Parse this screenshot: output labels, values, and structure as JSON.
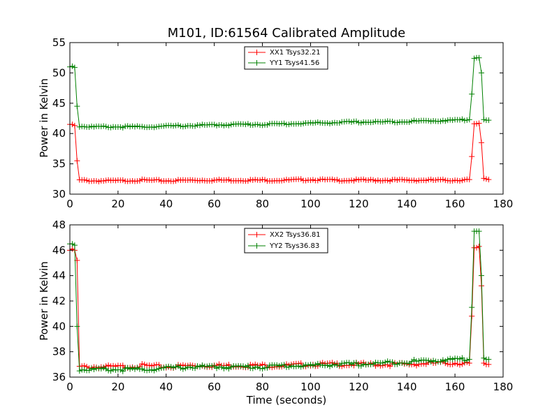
{
  "chart_data": [
    {
      "type": "line",
      "title": "M101, ID:61564 Calibrated Amplitude",
      "xlabel": "",
      "ylabel": "Power in Kelvin",
      "xlim": [
        0,
        180
      ],
      "ylim": [
        30,
        55
      ],
      "xticks": [
        "0",
        "20",
        "40",
        "60",
        "80",
        "100",
        "120",
        "140",
        "160",
        "180"
      ],
      "yticks": [
        "30",
        "35",
        "40",
        "45",
        "50",
        "55"
      ],
      "legend_position": "upper center",
      "series": [
        {
          "name": "XX1 Tsys32.21",
          "color": "#ff0000",
          "points": [
            [
              0,
              41.5
            ],
            [
              1,
              41.5
            ],
            [
              2,
              41.3
            ],
            [
              3,
              35.5
            ],
            [
              4,
              32.3
            ],
            [
              10,
              32.2
            ],
            [
              20,
              32.2
            ],
            [
              30,
              32.3
            ],
            [
              40,
              32.2
            ],
            [
              50,
              32.3
            ],
            [
              60,
              32.3
            ],
            [
              70,
              32.3
            ],
            [
              80,
              32.3
            ],
            [
              90,
              32.3
            ],
            [
              100,
              32.4
            ],
            [
              110,
              32.3
            ],
            [
              120,
              32.3
            ],
            [
              130,
              32.3
            ],
            [
              140,
              32.3
            ],
            [
              150,
              32.3
            ],
            [
              160,
              32.3
            ],
            [
              166,
              32.4
            ],
            [
              167,
              36.2
            ],
            [
              168,
              41.6
            ],
            [
              169,
              41.6
            ],
            [
              170,
              41.7
            ],
            [
              171,
              38.5
            ],
            [
              172,
              32.6
            ],
            [
              173,
              32.5
            ],
            [
              174,
              32.4
            ]
          ]
        },
        {
          "name": "YY1 Tsys41.56",
          "color": "#008000",
          "points": [
            [
              0,
              51.0
            ],
            [
              1,
              51.1
            ],
            [
              2,
              50.9
            ],
            [
              3,
              44.5
            ],
            [
              4,
              41.2
            ],
            [
              10,
              41.1
            ],
            [
              20,
              41.1
            ],
            [
              30,
              41.1
            ],
            [
              40,
              41.2
            ],
            [
              50,
              41.3
            ],
            [
              60,
              41.4
            ],
            [
              70,
              41.5
            ],
            [
              80,
              41.5
            ],
            [
              90,
              41.6
            ],
            [
              100,
              41.7
            ],
            [
              110,
              41.8
            ],
            [
              120,
              41.9
            ],
            [
              130,
              41.9
            ],
            [
              140,
              42.0
            ],
            [
              150,
              42.1
            ],
            [
              160,
              42.2
            ],
            [
              166,
              42.3
            ],
            [
              167,
              46.5
            ],
            [
              168,
              52.4
            ],
            [
              169,
              52.5
            ],
            [
              170,
              52.5
            ],
            [
              171,
              50.0
            ],
            [
              172,
              42.3
            ],
            [
              173,
              42.2
            ],
            [
              174,
              42.2
            ]
          ]
        }
      ]
    },
    {
      "type": "line",
      "title": "",
      "xlabel": "Time (seconds)",
      "ylabel": "Power in Kelvin",
      "xlim": [
        0,
        180
      ],
      "ylim": [
        36,
        48
      ],
      "xticks": [
        "0",
        "20",
        "40",
        "60",
        "80",
        "100",
        "120",
        "140",
        "160",
        "180"
      ],
      "yticks": [
        "36",
        "38",
        "40",
        "42",
        "44",
        "46",
        "48"
      ],
      "legend_position": "upper center",
      "series": [
        {
          "name": "XX2 Tsys36.81",
          "color": "#ff0000",
          "points": [
            [
              0,
              46.0
            ],
            [
              1,
              46.1
            ],
            [
              2,
              46.0
            ],
            [
              3,
              45.2
            ],
            [
              4,
              36.8
            ],
            [
              10,
              36.8
            ],
            [
              20,
              36.8
            ],
            [
              30,
              36.9
            ],
            [
              40,
              36.8
            ],
            [
              50,
              36.9
            ],
            [
              60,
              36.9
            ],
            [
              70,
              36.9
            ],
            [
              80,
              36.9
            ],
            [
              90,
              36.9
            ],
            [
              100,
              37.0
            ],
            [
              110,
              37.0
            ],
            [
              120,
              37.0
            ],
            [
              130,
              37.0
            ],
            [
              140,
              37.0
            ],
            [
              150,
              37.1
            ],
            [
              160,
              37.1
            ],
            [
              166,
              37.1
            ],
            [
              167,
              40.8
            ],
            [
              168,
              46.2
            ],
            [
              169,
              46.2
            ],
            [
              170,
              46.3
            ],
            [
              171,
              43.2
            ],
            [
              172,
              37.1
            ],
            [
              173,
              37.0
            ],
            [
              174,
              37.0
            ]
          ]
        },
        {
          "name": "YY2 Tsys36.83",
          "color": "#008000",
          "points": [
            [
              0,
              46.5
            ],
            [
              1,
              46.5
            ],
            [
              2,
              46.4
            ],
            [
              3,
              40.0
            ],
            [
              4,
              36.6
            ],
            [
              10,
              36.6
            ],
            [
              20,
              36.6
            ],
            [
              30,
              36.6
            ],
            [
              40,
              36.7
            ],
            [
              50,
              36.8
            ],
            [
              60,
              36.8
            ],
            [
              70,
              36.8
            ],
            [
              80,
              36.8
            ],
            [
              90,
              36.9
            ],
            [
              100,
              36.9
            ],
            [
              110,
              37.0
            ],
            [
              120,
              37.0
            ],
            [
              130,
              37.1
            ],
            [
              140,
              37.2
            ],
            [
              150,
              37.3
            ],
            [
              160,
              37.4
            ],
            [
              166,
              37.4
            ],
            [
              167,
              41.5
            ],
            [
              168,
              47.5
            ],
            [
              169,
              47.5
            ],
            [
              170,
              47.5
            ],
            [
              171,
              44.0
            ],
            [
              172,
              37.5
            ],
            [
              173,
              37.4
            ],
            [
              174,
              37.4
            ]
          ]
        }
      ]
    }
  ]
}
